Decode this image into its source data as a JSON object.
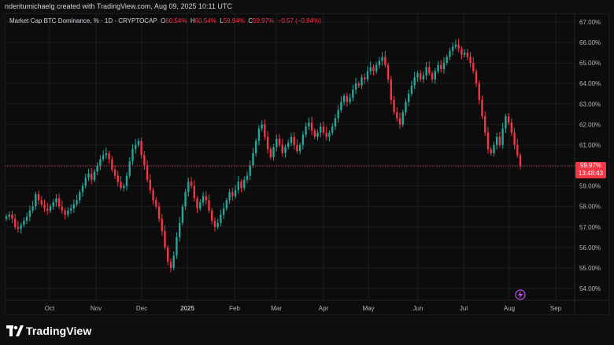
{
  "header": {
    "credit": "nderitumichaelg created with TradingView.com, Aug 09, 2025 10:11 UTC"
  },
  "legend": {
    "symbol": "Market Cap BTC Dominance, % · 1D · CRYPTOCAP",
    "open_label": "O",
    "open": "60.54%",
    "high_label": "H",
    "high": "60.54%",
    "low_label": "L",
    "low": "59.94%",
    "close_label": "C",
    "close": "59.97%",
    "change": "−0.57 (−0.94%)"
  },
  "price_tag": {
    "price": "59.97%",
    "countdown": "13:48:43"
  },
  "footer": {
    "brand": "TradingView"
  },
  "colors": {
    "up": "#26a69a",
    "down": "#f23645",
    "background": "#0c0c0c",
    "grid": "#1e1e1e",
    "text": "#b2b5be"
  },
  "chart_data": {
    "type": "candlestick",
    "title": "Market Cap BTC Dominance, % · 1D · CRYPTOCAP",
    "ylabel": "%",
    "ylim": [
      53.5,
      67.5
    ],
    "y_ticks": [
      "67.00%",
      "66.00%",
      "65.00%",
      "64.00%",
      "63.00%",
      "62.00%",
      "61.00%",
      "60.00%",
      "59.00%",
      "58.00%",
      "57.00%",
      "56.00%",
      "55.00%",
      "54.00%"
    ],
    "x_ticks": [
      "Oct",
      "Nov",
      "Dec",
      "2025",
      "Feb",
      "Mar",
      "Apr",
      "May",
      "Jun",
      "Jul",
      "Aug",
      "Sep"
    ],
    "last_close": 59.97,
    "series": [
      {
        "values": [
          57.5,
          57.6,
          57.4,
          57.0,
          56.9,
          57.1,
          57.3,
          57.5,
          57.8,
          58.0,
          58.6,
          58.3,
          58.1,
          57.9,
          57.8,
          58.0,
          58.2,
          58.4,
          58.0,
          57.8,
          57.6,
          57.8,
          57.9,
          58.1,
          58.3,
          58.7,
          59.0,
          59.4,
          59.6,
          59.3,
          59.7,
          60.0,
          60.3,
          60.5,
          60.6,
          60.3,
          59.8,
          59.5,
          59.2,
          58.9,
          59.0,
          59.5,
          60.2,
          60.8,
          61.0,
          61.2,
          60.5,
          60.0,
          59.3,
          58.8,
          58.3,
          58.0,
          57.4,
          56.8,
          56.0,
          55.3,
          55.0,
          55.6,
          56.5,
          57.2,
          58.0,
          58.7,
          59.2,
          59.0,
          58.4,
          57.9,
          58.2,
          58.5,
          58.3,
          57.8,
          57.3,
          57.0,
          57.2,
          57.6,
          57.9,
          58.3,
          58.7,
          58.5,
          58.8,
          59.2,
          58.9,
          59.3,
          59.5,
          60.0,
          60.6,
          61.2,
          61.8,
          62.0,
          61.4,
          60.8,
          60.4,
          60.9,
          61.3,
          61.0,
          60.6,
          60.9,
          61.1,
          61.4,
          61.0,
          60.7,
          61.0,
          61.5,
          61.9,
          62.1,
          61.7,
          61.4,
          61.6,
          61.9,
          61.6,
          61.4,
          61.6,
          61.9,
          62.3,
          62.7,
          63.1,
          63.4,
          63.1,
          63.3,
          63.7,
          64.0,
          63.9,
          64.3,
          64.2,
          64.6,
          64.8,
          64.6,
          64.9,
          65.1,
          65.3,
          64.9,
          64.2,
          63.2,
          62.6,
          62.3,
          62.0,
          62.6,
          63.1,
          63.5,
          63.9,
          64.3,
          64.5,
          64.2,
          64.4,
          64.8,
          64.5,
          64.2,
          64.6,
          64.9,
          64.7,
          65.0,
          65.3,
          65.6,
          65.8,
          65.9,
          65.7,
          65.4,
          65.5,
          65.3,
          65.0,
          64.6,
          64.0,
          63.2,
          62.4,
          61.6,
          60.8,
          60.6,
          61.0,
          61.4,
          61.0,
          61.8,
          62.4,
          62.1,
          61.6,
          61.0,
          60.5,
          59.97
        ]
      }
    ]
  }
}
